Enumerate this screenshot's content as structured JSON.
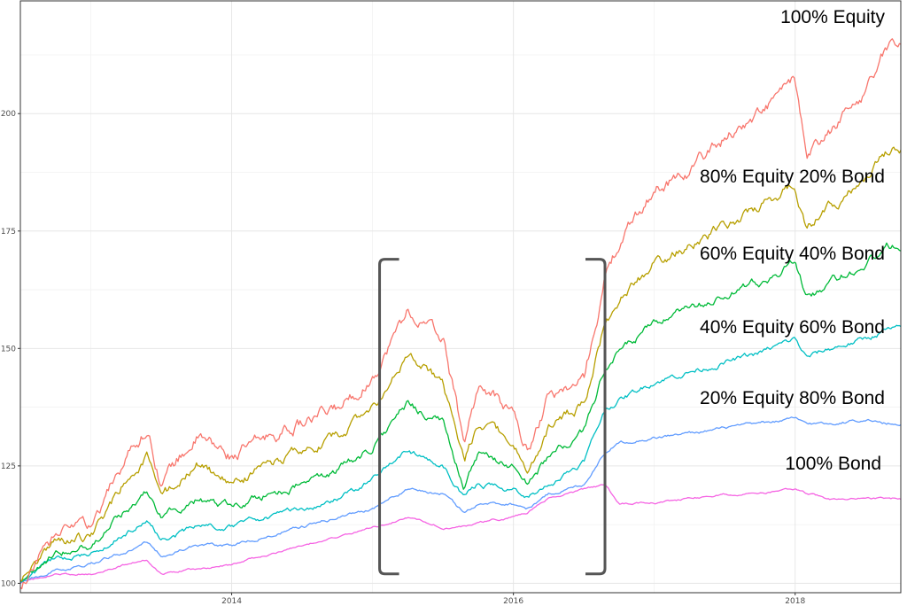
{
  "chart_data": {
    "type": "line",
    "title": "",
    "xlabel": "",
    "ylabel": "",
    "xlim": [
      2012.5,
      2018.75
    ],
    "ylim": [
      98,
      224
    ],
    "x_ticks": [
      2014,
      2016,
      2018
    ],
    "x_tick_labels": [
      "2014",
      "2016",
      "2018"
    ],
    "y_ticks": [
      100,
      125,
      150,
      175,
      200
    ],
    "y_tick_labels": [
      "100",
      "125",
      "150",
      "175",
      "200"
    ],
    "grid": true,
    "x": [
      2012.5,
      2012.75,
      2013.0,
      2013.25,
      2013.4,
      2013.5,
      2013.75,
      2014.0,
      2014.25,
      2014.5,
      2014.75,
      2015.0,
      2015.25,
      2015.5,
      2015.65,
      2015.75,
      2016.0,
      2016.1,
      2016.25,
      2016.5,
      2016.65,
      2016.75,
      2017.0,
      2017.25,
      2017.5,
      2017.75,
      2018.0,
      2018.08,
      2018.25,
      2018.5,
      2018.65,
      2018.75
    ],
    "series": [
      {
        "name": "100% Equity",
        "color": "#f8766d",
        "values": [
          100,
          110,
          112,
          127,
          133,
          122,
          131,
          127,
          131,
          134,
          137,
          144,
          158,
          152,
          130,
          142,
          136,
          128,
          140,
          143,
          165,
          172,
          184,
          188,
          195,
          200,
          207,
          190,
          196,
          205,
          214,
          215
        ]
      },
      {
        "name": "80% Equity 20% Bond",
        "color": "#b79f00",
        "values": [
          100,
          109,
          110,
          122,
          127,
          118,
          125,
          121,
          125,
          128,
          131,
          137,
          148,
          143,
          125,
          134,
          130,
          124,
          133,
          138,
          155,
          160,
          168,
          172,
          176,
          180,
          185,
          176,
          180,
          186,
          192,
          193
        ]
      },
      {
        "name": "60% Equity 40% Bond",
        "color": "#00ba38",
        "values": [
          100,
          107,
          108,
          116,
          120,
          114,
          118,
          116,
          119,
          121,
          124,
          129,
          138,
          134,
          121,
          127,
          125,
          121,
          127,
          132,
          146,
          149,
          155,
          158,
          161,
          164,
          168,
          161,
          164,
          168,
          172,
          172
        ]
      },
      {
        "name": "40% Equity 60% Bond",
        "color": "#00bfc4",
        "values": [
          100,
          105,
          106,
          111,
          114,
          109,
          112,
          112,
          114,
          116,
          118,
          122,
          128,
          125,
          118,
          121,
          120,
          118,
          121,
          126,
          137,
          139,
          143,
          145,
          147,
          149,
          152,
          148,
          150,
          152,
          154,
          154
        ]
      },
      {
        "name": "20% Equity 80% Bond",
        "color": "#619cff",
        "values": [
          100,
          103,
          104,
          107,
          109,
          106,
          108,
          108,
          110,
          112,
          114,
          116,
          120,
          119,
          115,
          117,
          117,
          116,
          119,
          121,
          128,
          130,
          131,
          132,
          133,
          134,
          135,
          134,
          134,
          135,
          134,
          134
        ]
      },
      {
        "name": "100% Bond",
        "color": "#f564e3",
        "values": [
          100,
          102,
          102,
          104,
          105,
          102,
          103,
          104,
          106,
          108,
          110,
          112,
          114,
          112,
          112,
          113,
          114,
          115,
          118,
          120,
          121,
          117,
          117,
          118,
          119,
          119,
          120,
          119,
          118,
          118,
          118,
          118
        ]
      }
    ],
    "annotations": [
      {
        "type": "bracket",
        "side": "left",
        "x": 2015.05,
        "y_range": [
          102,
          169
        ]
      },
      {
        "type": "bracket",
        "side": "right",
        "x": 2016.65,
        "y_range": [
          102,
          169
        ]
      }
    ]
  }
}
